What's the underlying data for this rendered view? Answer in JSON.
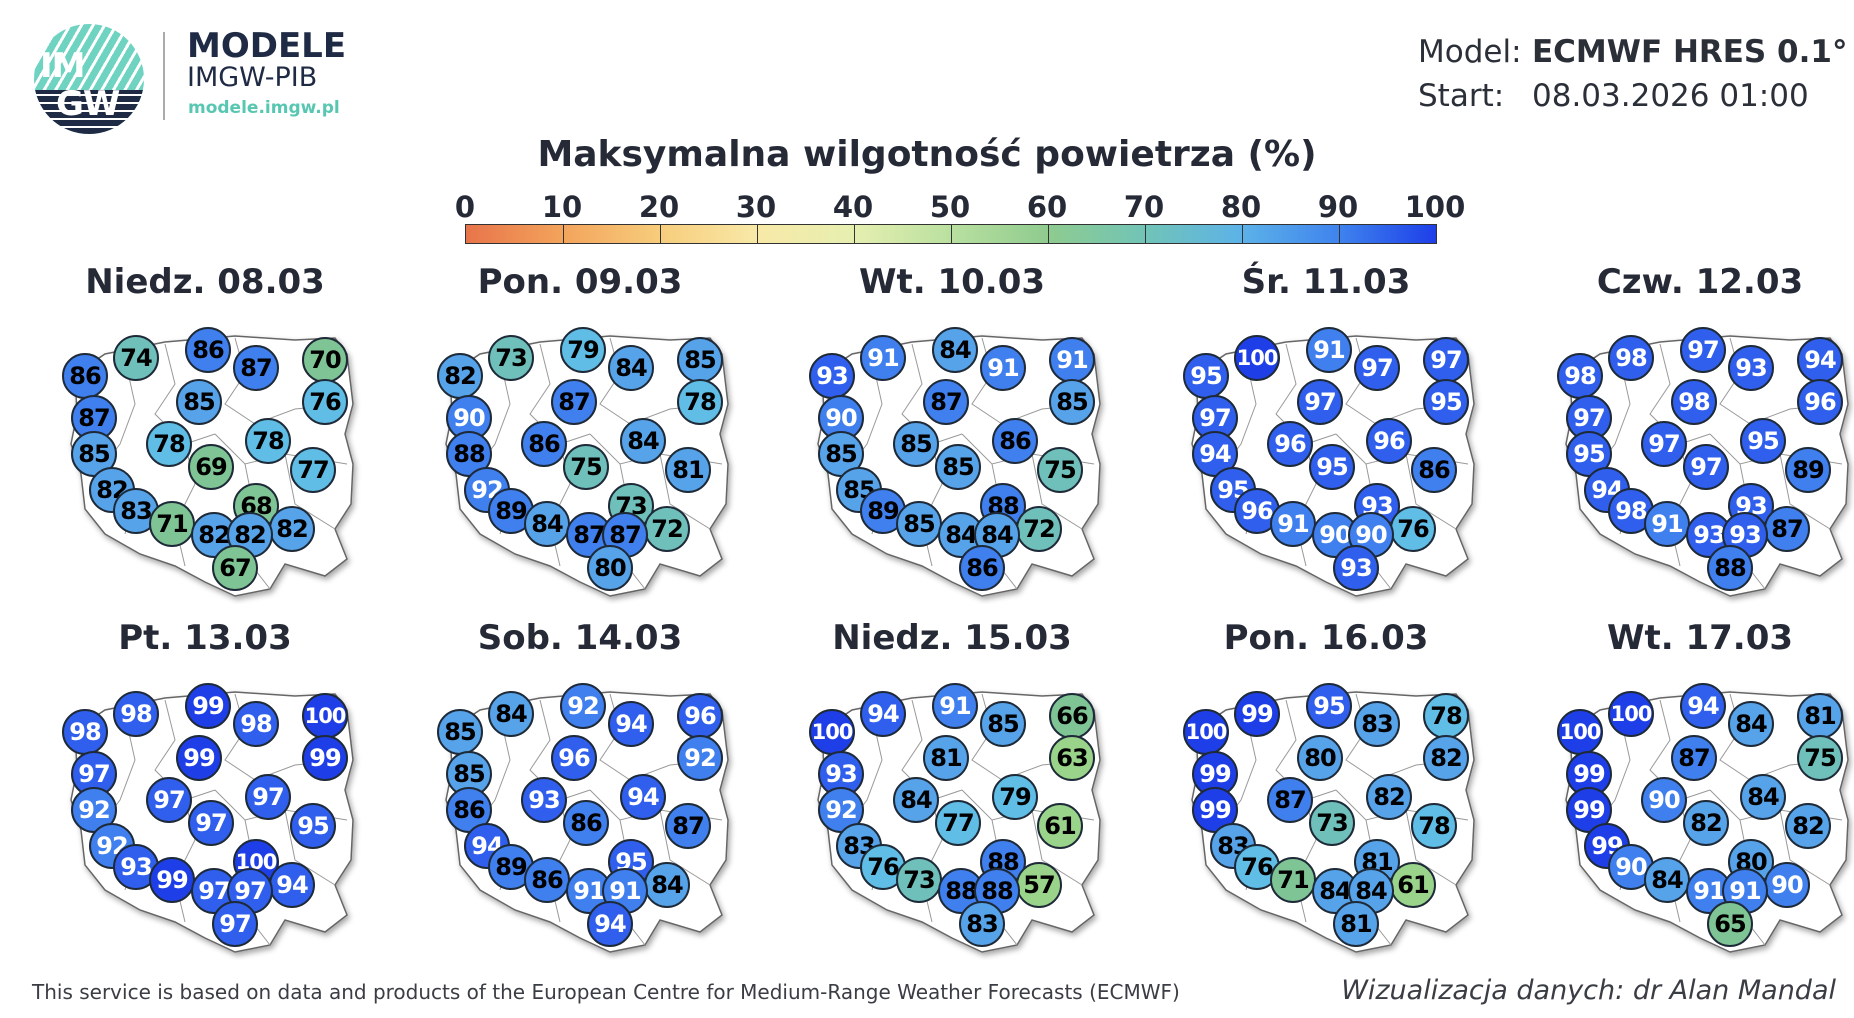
{
  "header": {
    "logo_text_top": "IM",
    "logo_text_bottom": "GW",
    "brand_title": "MODELE",
    "brand_subtitle": "IMGW-PIB",
    "brand_url": "modele.imgw.pl",
    "model_label": "Model:",
    "model_value": "ECMWF HRES 0.1°",
    "start_label": "Start:",
    "start_value": "08.03.2026 01:00"
  },
  "title": "Maksymalna wilgotność powietrza (%)",
  "scale": {
    "ticks": [
      "0",
      "10",
      "20",
      "30",
      "40",
      "50",
      "60",
      "70",
      "80",
      "90",
      "100"
    ],
    "colors": [
      "#e8744a",
      "#f3a45c",
      "#f7cd7c",
      "#f8e9a8",
      "#e6efb0",
      "#b9e0a0",
      "#8fcb8f",
      "#71c4b7",
      "#5cb2e8",
      "#3f83ee",
      "#1e3fe8"
    ]
  },
  "footer": {
    "attribution": "This service is based on data and products of the European Centre for Medium-Range Weather Forecasts (ECMWF)",
    "author": "Wizualizacja danych: dr Alan Mandal"
  },
  "chart_data": {
    "type": "map",
    "title": "Maksymalna wilgotność powietrza (%)",
    "unit": "%",
    "legend_range": [
      0,
      100
    ],
    "station_positions": [
      [
        0.1,
        0.2
      ],
      [
        0.27,
        0.13
      ],
      [
        0.51,
        0.1
      ],
      [
        0.67,
        0.17
      ],
      [
        0.9,
        0.14
      ],
      [
        0.13,
        0.36
      ],
      [
        0.48,
        0.3
      ],
      [
        0.9,
        0.3
      ],
      [
        0.38,
        0.46
      ],
      [
        0.13,
        0.5
      ],
      [
        0.71,
        0.45
      ],
      [
        0.52,
        0.55
      ],
      [
        0.86,
        0.56
      ],
      [
        0.19,
        0.64
      ],
      [
        0.27,
        0.72
      ],
      [
        0.39,
        0.77
      ],
      [
        0.53,
        0.81
      ],
      [
        0.67,
        0.7
      ],
      [
        0.79,
        0.79
      ],
      [
        0.65,
        0.81
      ],
      [
        0.6,
        0.94
      ]
    ],
    "days": [
      {
        "label": "Niedz. 08.03",
        "values": [
          86,
          74,
          86,
          87,
          70,
          87,
          85,
          76,
          78,
          85,
          78,
          69,
          77,
          82,
          83,
          71,
          82,
          68,
          82,
          82,
          67
        ]
      },
      {
        "label": "Pon. 09.03",
        "values": [
          82,
          73,
          79,
          84,
          85,
          90,
          87,
          78,
          86,
          88,
          84,
          75,
          81,
          92,
          89,
          84,
          87,
          73,
          72,
          87,
          80
        ]
      },
      {
        "label": "Wt. 10.03",
        "values": [
          93,
          91,
          84,
          91,
          91,
          90,
          87,
          85,
          85,
          85,
          86,
          85,
          75,
          85,
          89,
          85,
          84,
          88,
          72,
          84,
          86
        ]
      },
      {
        "label": "Śr. 11.03",
        "values": [
          95,
          100,
          91,
          97,
          97,
          97,
          97,
          95,
          96,
          94,
          96,
          95,
          86,
          95,
          96,
          91,
          90,
          93,
          76,
          90,
          93
        ]
      },
      {
        "label": "Czw. 12.03",
        "values": [
          98,
          98,
          97,
          93,
          94,
          97,
          98,
          96,
          97,
          95,
          95,
          97,
          89,
          94,
          98,
          91,
          93,
          93,
          87,
          93,
          88
        ]
      },
      {
        "label": "Pt. 13.03",
        "values": [
          98,
          98,
          99,
          98,
          100,
          97,
          99,
          99,
          97,
          92,
          97,
          97,
          95,
          92,
          93,
          99,
          97,
          100,
          94,
          97,
          97
        ]
      },
      {
        "label": "Sob. 14.03",
        "values": [
          85,
          84,
          92,
          94,
          96,
          85,
          96,
          92,
          93,
          86,
          94,
          86,
          87,
          94,
          89,
          86,
          91,
          95,
          84,
          91,
          94
        ]
      },
      {
        "label": "Niedz. 15.03",
        "values": [
          100,
          94,
          91,
          85,
          66,
          93,
          81,
          63,
          84,
          92,
          79,
          77,
          61,
          83,
          76,
          73,
          88,
          88,
          57,
          88,
          83
        ]
      },
      {
        "label": "Pon. 16.03",
        "values": [
          100,
          99,
          95,
          83,
          78,
          99,
          80,
          82,
          87,
          99,
          82,
          73,
          78,
          83,
          76,
          71,
          84,
          81,
          61,
          84,
          81
        ]
      },
      {
        "label": "Wt. 17.03",
        "values": [
          100,
          100,
          94,
          84,
          81,
          99,
          87,
          75,
          90,
          99,
          84,
          82,
          82,
          99,
          90,
          84,
          91,
          80,
          90,
          91,
          65
        ]
      }
    ]
  }
}
